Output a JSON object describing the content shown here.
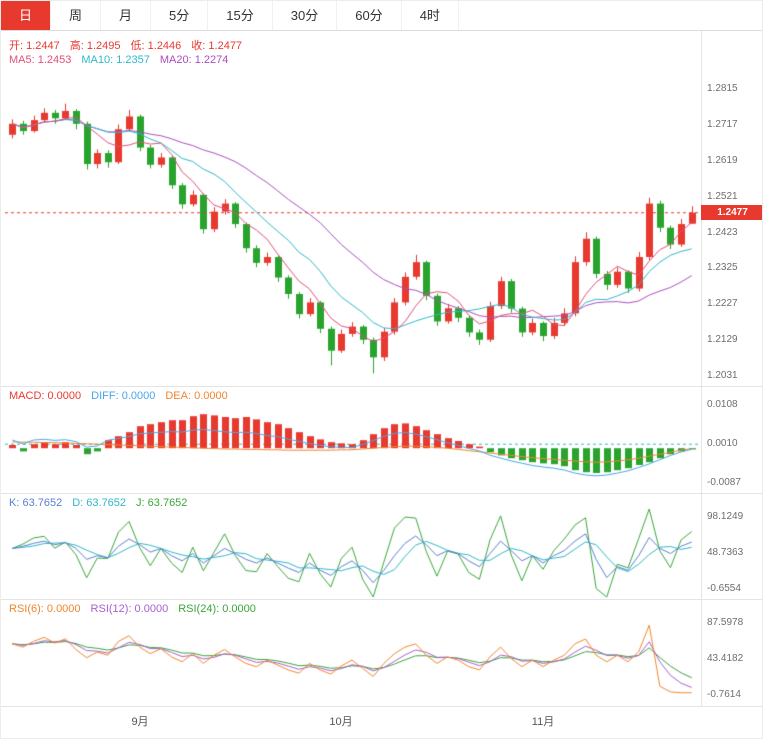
{
  "tabs": [
    {
      "key": "day",
      "label": "日",
      "active": true
    },
    {
      "key": "week",
      "label": "周",
      "active": false
    },
    {
      "key": "month",
      "label": "月",
      "active": false
    },
    {
      "key": "m5",
      "label": "5分",
      "active": false
    },
    {
      "key": "m15",
      "label": "15分",
      "active": false
    },
    {
      "key": "m30",
      "label": "30分",
      "active": false
    },
    {
      "key": "m60",
      "label": "60分",
      "active": false
    },
    {
      "key": "h4",
      "label": "4时",
      "active": false
    }
  ],
  "legends": {
    "ohlc": [
      {
        "label": "开",
        "value": "1.2447",
        "color": "#e8392f"
      },
      {
        "label": "高",
        "value": "1.2495",
        "color": "#e8392f"
      },
      {
        "label": "低",
        "value": "1.2446",
        "color": "#e8392f"
      },
      {
        "label": "收",
        "value": "1.2477",
        "color": "#e8392f"
      }
    ],
    "ma": [
      {
        "label": "MA5",
        "value": "1.2453",
        "color": "#e0507a"
      },
      {
        "label": "MA10",
        "value": "1.2357",
        "color": "#2fb8c9"
      },
      {
        "label": "MA20",
        "value": "1.2274",
        "color": "#aa4fc0"
      }
    ],
    "macd": [
      {
        "label": "MACD",
        "value": "0.0000",
        "color": "#e8392f"
      },
      {
        "label": "DIFF",
        "value": "0.0000",
        "color": "#4aa6e8"
      },
      {
        "label": "DEA",
        "value": "0.0000",
        "color": "#f0862e"
      }
    ],
    "kdj": [
      {
        "label": "K",
        "value": "63.7652",
        "color": "#5b7fd4"
      },
      {
        "label": "D",
        "value": "63.7652",
        "color": "#2fb8c9"
      },
      {
        "label": "J",
        "value": "63.7652",
        "color": "#3aa63a"
      }
    ],
    "rsi": [
      {
        "label": "RSI(6)",
        "value": "0.0000",
        "color": "#f0862e"
      },
      {
        "label": "RSI(12)",
        "value": "0.0000",
        "color": "#a95fd0"
      },
      {
        "label": "RSI(24)",
        "value": "0.0000",
        "color": "#3aa63a"
      }
    ]
  },
  "axes": {
    "main": [
      "1.2815",
      "1.2717",
      "1.2619",
      "1.2521",
      "1.2423",
      "1.2325",
      "1.2227",
      "1.2129",
      "1.2031"
    ],
    "macd": [
      "0.0108",
      "0.0010",
      "-0.0087"
    ],
    "kdj": [
      "98.1249",
      "48.7363",
      "-0.6554"
    ],
    "rsi": [
      "87.5978",
      "43.4182",
      "-0.7614"
    ],
    "x": [
      "9月",
      "10月",
      "11月"
    ]
  },
  "colors": {
    "red": "#e8392f",
    "green": "#28a42e",
    "ma5": "#e0507a",
    "ma10": "#2fb8c9",
    "ma20": "#aa4fc0",
    "diff": "#4aa6e8",
    "dea": "#f0862e",
    "ref_dash": "#2fb8c9",
    "k": "#5b7fd4",
    "d": "#2fb8c9",
    "j": "#3aa63a",
    "rsi6": "#f0862e",
    "rsi12": "#a95fd0",
    "rsi24": "#3aa63a",
    "axis_text": "#6e6e6e"
  },
  "chart_data": {
    "type": "candlestick",
    "panels": [
      "price+MA(5,10,20)",
      "MACD",
      "KDJ",
      "RSI"
    ],
    "last_price": "1.2477",
    "price_range": [
      1.2031,
      1.2815
    ],
    "ma_periods": [
      5,
      10,
      20
    ],
    "x_tick_indices": [
      12,
      31,
      50
    ],
    "candles": [
      [
        1.269,
        1.2732,
        1.268,
        1.272
      ],
      [
        1.272,
        1.2728,
        1.269,
        1.27
      ],
      [
        1.27,
        1.2742,
        1.2696,
        1.273
      ],
      [
        1.273,
        1.2762,
        1.2724,
        1.275
      ],
      [
        1.275,
        1.2758,
        1.272,
        1.2735
      ],
      [
        1.2735,
        1.2775,
        1.273,
        1.2755
      ],
      [
        1.2755,
        1.276,
        1.2705,
        1.272
      ],
      [
        1.272,
        1.2726,
        1.2595,
        1.261
      ],
      [
        1.261,
        1.265,
        1.2598,
        1.264
      ],
      [
        1.264,
        1.2648,
        1.26,
        1.2615
      ],
      [
        1.2615,
        1.2718,
        1.261,
        1.2705
      ],
      [
        1.2705,
        1.2758,
        1.27,
        1.274
      ],
      [
        1.274,
        1.2745,
        1.2645,
        1.2655
      ],
      [
        1.2655,
        1.2662,
        1.2598,
        1.2608
      ],
      [
        1.2608,
        1.264,
        1.26,
        1.2628
      ],
      [
        1.2628,
        1.2632,
        1.2542,
        1.2552
      ],
      [
        1.2552,
        1.2558,
        1.2488,
        1.25
      ],
      [
        1.25,
        1.2538,
        1.2494,
        1.2526
      ],
      [
        1.2526,
        1.253,
        1.242,
        1.2432
      ],
      [
        1.2432,
        1.2492,
        1.2424,
        1.248
      ],
      [
        1.248,
        1.2514,
        1.2472,
        1.2502
      ],
      [
        1.2502,
        1.2506,
        1.2436,
        1.2446
      ],
      [
        1.2446,
        1.245,
        1.2368,
        1.238
      ],
      [
        1.238,
        1.2388,
        1.2328,
        1.234
      ],
      [
        1.234,
        1.2368,
        1.2332,
        1.2356
      ],
      [
        1.2356,
        1.236,
        1.2288,
        1.23
      ],
      [
        1.23,
        1.2306,
        1.2242,
        1.2255
      ],
      [
        1.2255,
        1.226,
        1.2188,
        1.22
      ],
      [
        1.22,
        1.2244,
        1.2194,
        1.2232
      ],
      [
        1.2232,
        1.2236,
        1.2148,
        1.216
      ],
      [
        1.216,
        1.2166,
        1.206,
        1.21
      ],
      [
        1.21,
        1.2158,
        1.2094,
        1.2146
      ],
      [
        1.2146,
        1.2178,
        1.2138,
        1.2166
      ],
      [
        1.2166,
        1.217,
        1.2118,
        1.213
      ],
      [
        1.213,
        1.2136,
        1.2038,
        1.2082
      ],
      [
        1.2082,
        1.2162,
        1.2072,
        1.2152
      ],
      [
        1.2152,
        1.2244,
        1.2144,
        1.2232
      ],
      [
        1.2232,
        1.2314,
        1.2224,
        1.2302
      ],
      [
        1.2302,
        1.2362,
        1.2294,
        1.2342
      ],
      [
        1.2342,
        1.2346,
        1.2238,
        1.225
      ],
      [
        1.225,
        1.2256,
        1.2168,
        1.218
      ],
      [
        1.218,
        1.2228,
        1.2174,
        1.2216
      ],
      [
        1.2216,
        1.2222,
        1.2178,
        1.219
      ],
      [
        1.219,
        1.2196,
        1.2138,
        1.215
      ],
      [
        1.215,
        1.2158,
        1.2116,
        1.213
      ],
      [
        1.213,
        1.2234,
        1.2124,
        1.2222
      ],
      [
        1.2222,
        1.2302,
        1.2214,
        1.229
      ],
      [
        1.229,
        1.2296,
        1.2204,
        1.2215
      ],
      [
        1.2215,
        1.222,
        1.2138,
        1.215
      ],
      [
        1.215,
        1.2188,
        1.2142,
        1.2176
      ],
      [
        1.2176,
        1.218,
        1.2126,
        1.214
      ],
      [
        1.214,
        1.219,
        1.2132,
        1.2176
      ],
      [
        1.2176,
        1.2216,
        1.2168,
        1.2202
      ],
      [
        1.2202,
        1.2358,
        1.2194,
        1.2342
      ],
      [
        1.2342,
        1.2424,
        1.2332,
        1.2406
      ],
      [
        1.2406,
        1.2412,
        1.2298,
        1.231
      ],
      [
        1.231,
        1.2318,
        1.2266,
        1.228
      ],
      [
        1.228,
        1.2328,
        1.2272,
        1.2316
      ],
      [
        1.2316,
        1.232,
        1.2258,
        1.227
      ],
      [
        1.227,
        1.237,
        1.2262,
        1.2356
      ],
      [
        1.2356,
        1.2518,
        1.2348,
        1.2502
      ],
      [
        1.2502,
        1.251,
        1.2424,
        1.2436
      ],
      [
        1.2436,
        1.2442,
        1.2378,
        1.239
      ],
      [
        1.239,
        1.246,
        1.2384,
        1.2446
      ],
      [
        1.2447,
        1.2495,
        1.2446,
        1.2477
      ]
    ],
    "macd": {
      "hist": [
        0.0008,
        -0.0008,
        0.001,
        0.0015,
        0.001,
        0.0015,
        0.0008,
        -0.0015,
        -0.0008,
        0.002,
        0.003,
        0.004,
        0.0055,
        0.006,
        0.0065,
        0.007,
        0.007,
        0.008,
        0.0085,
        0.0082,
        0.0078,
        0.0075,
        0.0078,
        0.0072,
        0.0065,
        0.006,
        0.005,
        0.004,
        0.003,
        0.0022,
        0.0015,
        0.0012,
        0.001,
        0.002,
        0.0035,
        0.005,
        0.006,
        0.0062,
        0.0055,
        0.0045,
        0.0035,
        0.0025,
        0.0018,
        0.001,
        0.0004,
        -0.001,
        -0.0018,
        -0.0025,
        -0.003,
        -0.0035,
        -0.0038,
        -0.004,
        -0.0045,
        -0.0055,
        -0.006,
        -0.0062,
        -0.006,
        -0.0055,
        -0.005,
        -0.0042,
        -0.0035,
        -0.0025,
        -0.0015,
        -0.0008,
        -0.0003
      ],
      "dea": [
        0.0016,
        0.0015,
        0.0015,
        0.0014,
        0.0014,
        0.0013,
        0.0012,
        0.0011,
        0.001,
        0.0009,
        0.0008,
        0.0007,
        0.0006,
        0.0005,
        0.0004,
        0.0003,
        0.0002,
        0.0001,
        0,
        -0.0001,
        -0.0002,
        -0.0002,
        -0.0003,
        -0.0003,
        -0.0004,
        -0.0004,
        -0.0005,
        -0.0005,
        -0.0005,
        -0.0005,
        -0.0005,
        -0.0004,
        -0.0004,
        -0.0002,
        0,
        0.0002,
        0.0004,
        0.0005,
        0.0005,
        0.0004,
        0.0002,
        0,
        -0.0003,
        -0.0006,
        -0.0009,
        -0.0012,
        -0.0015,
        -0.0018,
        -0.0021,
        -0.0024,
        -0.0026,
        -0.0028,
        -0.003,
        -0.0032,
        -0.0034,
        -0.0035,
        -0.0034,
        -0.0032,
        -0.0029,
        -0.0025,
        -0.002,
        -0.0015,
        -0.001,
        -0.0005,
        -0.0001
      ]
    },
    "kdj": {
      "k": [
        55,
        58,
        62,
        65,
        60,
        63,
        55,
        40,
        45,
        42,
        58,
        68,
        60,
        50,
        55,
        45,
        38,
        48,
        35,
        45,
        55,
        48,
        40,
        35,
        42,
        35,
        28,
        22,
        35,
        25,
        18,
        30,
        38,
        25,
        8,
        25,
        45,
        62,
        72,
        60,
        45,
        52,
        48,
        38,
        30,
        48,
        65,
        52,
        38,
        45,
        35,
        45,
        52,
        65,
        75,
        40,
        15,
        30,
        25,
        45,
        70,
        55,
        48,
        58,
        63.8
      ]
    },
    "rsi": {
      "r6": [
        62,
        58,
        65,
        70,
        63,
        68,
        55,
        45,
        52,
        48,
        65,
        72,
        58,
        50,
        56,
        46,
        40,
        50,
        38,
        48,
        55,
        46,
        38,
        34,
        42,
        36,
        30,
        26,
        38,
        30,
        25,
        35,
        42,
        32,
        22,
        38,
        50,
        58,
        62,
        48,
        38,
        46,
        42,
        34,
        30,
        46,
        58,
        44,
        34,
        42,
        34,
        42,
        48,
        62,
        68,
        48,
        40,
        48,
        40,
        52,
        85,
        10,
        3,
        2,
        2
      ]
    }
  }
}
